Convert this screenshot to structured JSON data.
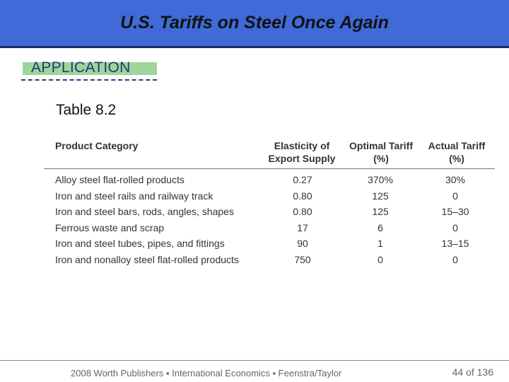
{
  "header": {
    "title": "U.S. Tariffs on Steel Once Again"
  },
  "tag": {
    "label": "APPLICATION"
  },
  "table": {
    "caption": "Table 8.2",
    "headers": {
      "product": "Product Category",
      "elasticity_1": "Elasticity of",
      "elasticity_2": "Export Supply",
      "optimal_1": "Optimal Tariff",
      "optimal_2": "(%)",
      "actual_1": "Actual Tariff",
      "actual_2": "(%)"
    },
    "rows": [
      {
        "product": "Alloy steel flat-rolled products",
        "elasticity": "0.27",
        "optimal": "370%",
        "actual": "30%"
      },
      {
        "product": "Iron and steel rails and railway track",
        "elasticity": "0.80",
        "optimal": "125",
        "actual": "0"
      },
      {
        "product": "Iron and steel bars, rods, angles, shapes",
        "elasticity": "0.80",
        "optimal": "125",
        "actual": "15–30"
      },
      {
        "product": "Ferrous waste and scrap",
        "elasticity": "17",
        "optimal": "6",
        "actual": "0"
      },
      {
        "product": "Iron and steel tubes, pipes, and fittings",
        "elasticity": "90",
        "optimal": "1",
        "actual": "13–15"
      },
      {
        "product": "Iron and nonalloy steel flat-rolled products",
        "elasticity": "750",
        "optimal": "0",
        "actual": "0"
      }
    ]
  },
  "footer": {
    "credit": "2008 Worth Publishers ▪ International Economics ▪ Feenstra/Taylor",
    "page": "44 of 136"
  }
}
